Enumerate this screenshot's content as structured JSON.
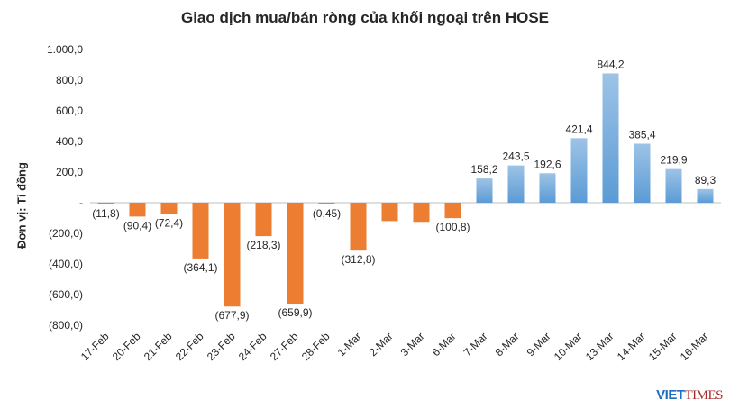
{
  "chart_data": {
    "type": "bar",
    "title": "Giao dịch mua/bán ròng của khối ngoại trên HOSE",
    "ylabel": "Đơn vị: Tỉ đồng",
    "xlabel": "",
    "ylim": [
      -800,
      1000
    ],
    "yticks": [
      1000,
      800,
      600,
      400,
      200,
      0,
      -200,
      -400,
      -600,
      -800
    ],
    "ytick_labels": [
      "1.000,0",
      "800,0",
      "600,0",
      "400,0",
      "200,0",
      "-",
      "(200,0)",
      "(400,0)",
      "(600,0)",
      "(800,0)"
    ],
    "categories": [
      "17-Feb",
      "20-Feb",
      "21-Feb",
      "22-Feb",
      "23-Feb",
      "24-Feb",
      "27-Feb",
      "28-Feb",
      "1-Mar",
      "2-Mar",
      "3-Mar",
      "6-Mar",
      "7-Mar",
      "8-Mar",
      "9-Mar",
      "10-Mar",
      "13-Mar",
      "14-Mar",
      "15-Mar",
      "16-Mar"
    ],
    "values": [
      -11.8,
      -90.4,
      -72.4,
      -364.1,
      -677.9,
      -218.3,
      -659.9,
      -0.45,
      -312.8,
      -120,
      -125,
      -100.8,
      158.2,
      243.5,
      192.6,
      421.4,
      844.2,
      385.4,
      219.9,
      89.3
    ],
    "data_labels": [
      "(11,8)",
      "(90,4)",
      "(72,4)",
      "(364,1)",
      "(677,9)",
      "(218,3)",
      "(659,9)",
      "(0,45)",
      "(312,8)",
      "",
      "",
      "(100,8)",
      "158,2",
      "243,5",
      "192,6",
      "421,4",
      "844,2",
      "385,4",
      "219,9",
      "89,3"
    ],
    "colors": {
      "negative": "#ed7d31",
      "positive": "#5b9bd5",
      "positive_light": "#9dc3e6"
    },
    "grid": false
  },
  "logo": {
    "part1": "VIET",
    "part2": "TIMES"
  }
}
